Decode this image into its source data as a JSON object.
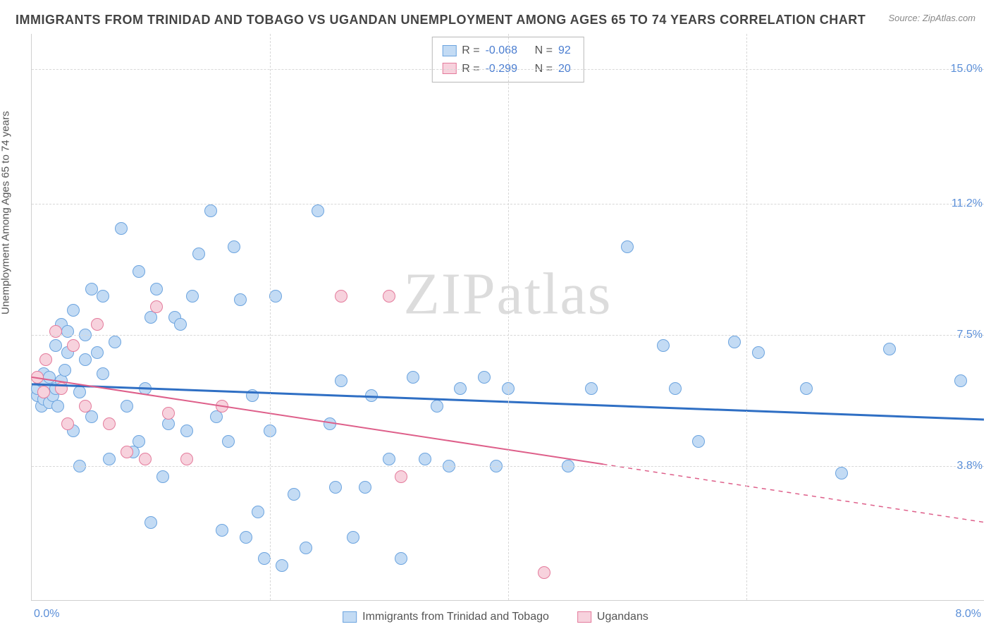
{
  "title": "IMMIGRANTS FROM TRINIDAD AND TOBAGO VS UGANDAN UNEMPLOYMENT AMONG AGES 65 TO 74 YEARS CORRELATION CHART",
  "source": "Source: ZipAtlas.com",
  "watermark_a": "ZIP",
  "watermark_b": "atlas",
  "chart": {
    "type": "scatter",
    "y_axis_label": "Unemployment Among Ages 65 to 74 years",
    "xlim": [
      0.0,
      8.0
    ],
    "ylim": [
      0.0,
      16.0
    ],
    "y_ticks": [
      3.8,
      7.5,
      11.2,
      15.0
    ],
    "y_tick_labels": [
      "3.8%",
      "7.5%",
      "11.2%",
      "15.0%"
    ],
    "x_tick_left": "0.0%",
    "x_tick_right": "8.0%",
    "x_grid_positions": [
      2.0,
      4.0,
      6.0
    ],
    "background_color": "#ffffff",
    "grid_color": "#d8d8d8",
    "series": [
      {
        "key": "trinidad",
        "label": "Immigrants from Trinidad and Tobago",
        "color_fill": "#c3dbf4",
        "color_stroke": "#6ca4df",
        "R_label": "R =",
        "R_value": "-0.068",
        "N_label": "N =",
        "N_value": "92",
        "trend": {
          "y_at_xmin": 6.1,
          "y_at_xmax": 5.1,
          "solid_until_x": 8.0,
          "color": "#2f6fc4",
          "width": 3
        },
        "points": [
          [
            0.05,
            5.8
          ],
          [
            0.05,
            6.0
          ],
          [
            0.08,
            5.5
          ],
          [
            0.08,
            6.2
          ],
          [
            0.1,
            5.7
          ],
          [
            0.1,
            6.4
          ],
          [
            0.12,
            5.9
          ],
          [
            0.12,
            6.1
          ],
          [
            0.15,
            5.6
          ],
          [
            0.15,
            6.3
          ],
          [
            0.18,
            5.8
          ],
          [
            0.2,
            6.0
          ],
          [
            0.2,
            7.2
          ],
          [
            0.22,
            5.5
          ],
          [
            0.25,
            6.2
          ],
          [
            0.25,
            7.8
          ],
          [
            0.28,
            6.5
          ],
          [
            0.3,
            7.0
          ],
          [
            0.3,
            7.6
          ],
          [
            0.35,
            4.8
          ],
          [
            0.35,
            8.2
          ],
          [
            0.4,
            5.9
          ],
          [
            0.45,
            6.8
          ],
          [
            0.45,
            7.5
          ],
          [
            0.5,
            5.2
          ],
          [
            0.55,
            7.0
          ],
          [
            0.6,
            6.4
          ],
          [
            0.6,
            8.6
          ],
          [
            0.65,
            4.0
          ],
          [
            0.7,
            7.3
          ],
          [
            0.75,
            10.5
          ],
          [
            0.8,
            5.5
          ],
          [
            0.85,
            4.2
          ],
          [
            0.9,
            9.3
          ],
          [
            0.95,
            6.0
          ],
          [
            1.0,
            8.0
          ],
          [
            1.05,
            8.8
          ],
          [
            1.1,
            3.5
          ],
          [
            1.15,
            5.0
          ],
          [
            1.2,
            8.0
          ],
          [
            1.25,
            7.8
          ],
          [
            1.3,
            4.8
          ],
          [
            1.35,
            8.6
          ],
          [
            1.4,
            9.8
          ],
          [
            1.5,
            11.0
          ],
          [
            1.55,
            5.2
          ],
          [
            1.6,
            2.0
          ],
          [
            1.65,
            4.5
          ],
          [
            1.7,
            10.0
          ],
          [
            1.75,
            8.5
          ],
          [
            1.8,
            1.8
          ],
          [
            1.85,
            5.8
          ],
          [
            1.9,
            2.5
          ],
          [
            1.95,
            1.2
          ],
          [
            2.0,
            4.8
          ],
          [
            2.05,
            8.6
          ],
          [
            2.1,
            1.0
          ],
          [
            2.2,
            3.0
          ],
          [
            2.3,
            1.5
          ],
          [
            2.4,
            11.0
          ],
          [
            2.5,
            5.0
          ],
          [
            2.55,
            3.2
          ],
          [
            2.6,
            6.2
          ],
          [
            2.7,
            1.8
          ],
          [
            2.8,
            3.2
          ],
          [
            2.85,
            5.8
          ],
          [
            3.0,
            4.0
          ],
          [
            3.1,
            1.2
          ],
          [
            3.2,
            6.3
          ],
          [
            3.3,
            4.0
          ],
          [
            3.4,
            5.5
          ],
          [
            3.5,
            3.8
          ],
          [
            3.6,
            6.0
          ],
          [
            3.8,
            6.3
          ],
          [
            3.9,
            3.8
          ],
          [
            4.0,
            6.0
          ],
          [
            4.5,
            3.8
          ],
          [
            4.7,
            6.0
          ],
          [
            5.0,
            10.0
          ],
          [
            5.3,
            7.2
          ],
          [
            5.4,
            6.0
          ],
          [
            5.6,
            4.5
          ],
          [
            5.9,
            7.3
          ],
          [
            6.1,
            7.0
          ],
          [
            6.5,
            6.0
          ],
          [
            6.8,
            3.6
          ],
          [
            7.2,
            7.1
          ],
          [
            7.8,
            6.2
          ],
          [
            0.4,
            3.8
          ],
          [
            0.5,
            8.8
          ],
          [
            0.9,
            4.5
          ],
          [
            1.0,
            2.2
          ]
        ]
      },
      {
        "key": "ugandan",
        "label": "Ugandans",
        "color_fill": "#f7d2dd",
        "color_stroke": "#e47b9c",
        "R_label": "R =",
        "R_value": "-0.299",
        "N_label": "N =",
        "N_value": "20",
        "trend": {
          "y_at_xmin": 6.3,
          "y_at_xmax": 2.2,
          "solid_until_x": 4.8,
          "color": "#de5f8a",
          "width": 2
        },
        "points": [
          [
            0.05,
            6.3
          ],
          [
            0.1,
            5.9
          ],
          [
            0.12,
            6.8
          ],
          [
            0.2,
            7.6
          ],
          [
            0.25,
            6.0
          ],
          [
            0.3,
            5.0
          ],
          [
            0.35,
            7.2
          ],
          [
            0.45,
            5.5
          ],
          [
            0.55,
            7.8
          ],
          [
            0.65,
            5.0
          ],
          [
            0.8,
            4.2
          ],
          [
            0.95,
            4.0
          ],
          [
            1.05,
            8.3
          ],
          [
            1.15,
            5.3
          ],
          [
            1.3,
            4.0
          ],
          [
            1.6,
            5.5
          ],
          [
            2.6,
            8.6
          ],
          [
            3.0,
            8.6
          ],
          [
            3.1,
            3.5
          ],
          [
            4.3,
            0.8
          ]
        ]
      }
    ]
  }
}
